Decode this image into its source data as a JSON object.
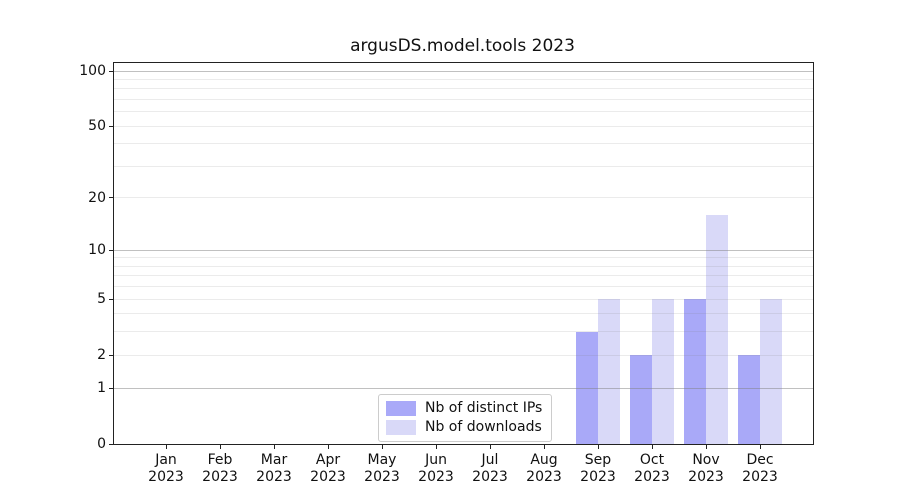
{
  "chart_data": {
    "type": "bar",
    "title": "argusDS.model.tools 2023",
    "year_label": "2023",
    "categories": [
      "Jan 2023",
      "Feb 2023",
      "Mar 2023",
      "Apr 2023",
      "May 2023",
      "Jun 2023",
      "Jul 2023",
      "Aug 2023",
      "Sep 2023",
      "Oct 2023",
      "Nov 2023",
      "Dec 2023"
    ],
    "month_labels": [
      "Jan",
      "Feb",
      "Mar",
      "Apr",
      "May",
      "Jun",
      "Jul",
      "Aug",
      "Sep",
      "Oct",
      "Nov",
      "Dec"
    ],
    "series": [
      {
        "name": "Nb of distinct IPs",
        "color": "#a9a9f8",
        "values": [
          0,
          0,
          0,
          0,
          0,
          0,
          0,
          0,
          3,
          2,
          5,
          2
        ]
      },
      {
        "name": "Nb of downloads",
        "color": "#d9d9f8",
        "values": [
          0,
          0,
          0,
          0,
          0,
          0,
          0,
          0,
          5,
          5,
          16,
          5
        ]
      }
    ],
    "yscale": "log1p",
    "ylim": [
      0,
      110
    ],
    "ytick_values": [
      0,
      1,
      2,
      5,
      10,
      20,
      50,
      100
    ],
    "ytick_labels": [
      "0",
      "1",
      "2",
      "5",
      "10",
      "20",
      "50",
      "100"
    ],
    "grid_major_values": [
      1,
      10,
      100
    ],
    "grid_minor_values": [
      2,
      3,
      4,
      5,
      6,
      7,
      8,
      9,
      20,
      30,
      40,
      50,
      60,
      70,
      80,
      90
    ],
    "grid": "both, drawn above bars",
    "legend_position": "lower center-left inside plot",
    "colors": {
      "bar_distinct_ips": "#a9a9f8",
      "bar_downloads": "#d9d9f8",
      "grid_major": "#bfbfbf",
      "grid_minor": "#ebebeb",
      "axis": "#222222",
      "text": "#111111",
      "legend_border": "#cccccc"
    }
  }
}
